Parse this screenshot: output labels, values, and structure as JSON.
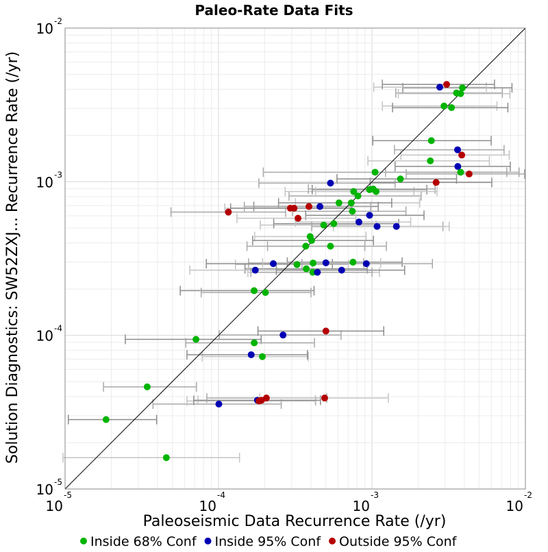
{
  "chart_data": {
    "type": "scatter",
    "title": "Paleo-Rate Data Fits",
    "xlabel": "Paleoseismic Data Recurrence Rate (/yr)",
    "ylabel": "Solution Diagnostics: SW52ZXJ... Recurrence Rate (/yr)",
    "xscale": "log",
    "yscale": "log",
    "xlim": [
      1e-05,
      0.01
    ],
    "ylim": [
      1e-05,
      0.01
    ],
    "grid": true,
    "reference_line": "y = x",
    "x_ticks": [
      {
        "base": "10",
        "exp": "-5"
      },
      {
        "base": "10",
        "exp": "-4"
      },
      {
        "base": "10",
        "exp": "-3"
      },
      {
        "base": "10",
        "exp": "-2"
      }
    ],
    "y_ticks": [
      {
        "base": "10",
        "exp": "-5"
      },
      {
        "base": "10",
        "exp": "-4"
      },
      {
        "base": "10",
        "exp": "-3"
      },
      {
        "base": "10",
        "exp": "-2"
      }
    ],
    "legend_position": "bottom",
    "series": [
      {
        "name": "Inside 68% Conf",
        "color": "#00b400",
        "points": [
          {
            "x": 1.85e-05,
            "y": 2.83e-05,
            "xmin": 1.05e-05,
            "xmax": 3.95e-05
          },
          {
            "x": 3.43e-05,
            "y": 4.62e-05,
            "xmin": 1.78e-05,
            "xmax": 7.18e-05
          },
          {
            "x": 4.57e-05,
            "y": 1.6e-05,
            "xmin": 9.7e-06,
            "xmax": 0.0001371
          },
          {
            "x": 7.13e-05,
            "y": 9.42e-05,
            "xmin": 2.47e-05,
            "xmax": 0.0001896
          },
          {
            "x": 0.0001709,
            "y": 8.94e-05,
            "xmin": 6.12e-05,
            "xmax": 0.0004218
          },
          {
            "x": 0.0001931,
            "y": 7.27e-05,
            "xmin": 7.83e-05,
            "xmax": 0.000385
          },
          {
            "x": 0.0001706,
            "y": 0.0001954,
            "xmin": 5.63e-05,
            "xmax": 0.0004195
          },
          {
            "x": 0.0002021,
            "y": 0.00019,
            "xmin": 7.71e-05,
            "xmax": 0.0004006
          },
          {
            "x": 0.0003245,
            "y": 0.0002889,
            "xmin": 0.0001289,
            "xmax": 0.0007015
          },
          {
            "x": 0.0003733,
            "y": 0.0002712,
            "xmin": 0.0001487,
            "xmax": 0.0009312
          },
          {
            "x": 0.0004133,
            "y": 0.0002956,
            "xmin": 0.000157,
            "xmax": 0.0008825
          },
          {
            "x": 0.0004115,
            "y": 0.0002573,
            "xmin": 0.0001553,
            "xmax": 0.00112
          },
          {
            "x": 0.0007525,
            "y": 0.0002995,
            "xmin": 0.0002806,
            "xmax": 0.001573
          },
          {
            "x": 0.0003702,
            "y": 0.0003803,
            "xmin": 0.0001533,
            "xmax": 0.000899
          },
          {
            "x": 0.0003954,
            "y": 0.0004396,
            "xmin": 0.000172,
            "xmax": 0.0009154
          },
          {
            "x": 0.0004047,
            "y": 0.0004145,
            "xmin": 0.0001669,
            "xmax": 0.001023
          },
          {
            "x": 0.0005366,
            "y": 0.0003803,
            "xmin": 0.0002087,
            "xmax": 0.001242
          },
          {
            "x": 0.0004846,
            "y": 0.0005222,
            "xmin": 0.0001871,
            "xmax": 0.001064
          },
          {
            "x": 0.0005639,
            "y": 0.0005334,
            "xmin": 0.000229,
            "xmax": 0.001494
          },
          {
            "x": 0.0007452,
            "y": 0.0006424,
            "xmin": 0.0003042,
            "xmax": 0.001665
          },
          {
            "x": 0.0007333,
            "y": 0.0007281,
            "xmin": 0.0003173,
            "xmax": 0.002047
          },
          {
            "x": 0.0006095,
            "y": 0.0007281,
            "xmin": 0.0002462,
            "xmax": 0.001345
          },
          {
            "x": 0.0008106,
            "y": 0.000808,
            "xmin": 0.0002882,
            "xmax": 0.002091
          },
          {
            "x": 0.0007598,
            "y": 0.0008632,
            "xmin": 0.0002717,
            "xmax": 0.001876
          },
          {
            "x": 0.0009648,
            "y": 0.0008882,
            "xmin": 0.0004078,
            "xmax": 0.002278
          },
          {
            "x": 0.001017,
            "y": 0.0008967,
            "xmin": 0.0003851,
            "xmax": 0.00258
          },
          {
            "x": 0.001064,
            "y": 0.0008632,
            "xmin": 0.0004294,
            "xmax": 0.002658
          },
          {
            "x": 0.001533,
            "y": 0.001043,
            "xmin": 0.0005914,
            "xmax": 0.003558
          },
          {
            "x": 0.001048,
            "y": 0.001153,
            "xmin": 0.0001958,
            "xmax": 0.007567
          },
          {
            "x": 0.002401,
            "y": 0.001367,
            "xmin": 0.0009412,
            "xmax": 0.005821
          },
          {
            "x": 0.002438,
            "y": 0.00185,
            "xmin": 0.001013,
            "xmax": 0.00598
          },
          {
            "x": 0.003782,
            "y": 0.001153,
            "xmin": 0.001226,
            "xmax": 0.009099
          },
          {
            "x": 0.002949,
            "y": 0.00311,
            "xmin": 0.001169,
            "xmax": 0.006526
          },
          {
            "x": 0.003298,
            "y": 0.003038,
            "xmin": 0.001362,
            "xmax": 0.007686
          },
          {
            "x": 0.003556,
            "y": 0.003782,
            "xmin": 0.00143,
            "xmax": 0.007078
          },
          {
            "x": 0.003782,
            "y": 0.003743,
            "xmin": 0.001486,
            "xmax": 0.007919
          },
          {
            "x": 0.003886,
            "y": 0.004084,
            "xmin": 0.001588,
            "xmax": 0.008178
          }
        ]
      },
      {
        "name": "Inside 95% Conf",
        "color": "#0000b4",
        "points": [
          {
            "x": 0.0001005,
            "y": 3.57e-05,
            "xmin": 3.74e-05,
            "xmax": 0.0002563
          },
          {
            "x": 0.0001793,
            "y": 3.78e-05,
            "xmin": 7.34e-05,
            "xmax": 0.0004271
          },
          {
            "x": 0.0001633,
            "y": 7.48e-05,
            "xmin": 6.23e-05,
            "xmax": 0.0003795
          },
          {
            "x": 0.0002634,
            "y": 0.0001005,
            "xmin": 0.0001012,
            "xmax": 0.0006286
          },
          {
            "x": 0.0001736,
            "y": 0.0002657,
            "xmin": 6.5e-05,
            "xmax": 0.0004089
          },
          {
            "x": 0.0002275,
            "y": 0.0002928,
            "xmin": 8.33e-05,
            "xmax": 0.0005524
          },
          {
            "x": 0.0004409,
            "y": 0.0002573,
            "xmin": 0.0001625,
            "xmax": 0.001001
          },
          {
            "x": 0.0005009,
            "y": 0.0002966,
            "xmin": 0.0001938,
            "xmax": 0.00114
          },
          {
            "x": 0.0006347,
            "y": 0.0002657,
            "xmin": 0.0002382,
            "xmax": 0.001633
          },
          {
            "x": 0.000919,
            "y": 0.0002928,
            "xmin": 0.0003501,
            "xmax": 0.002478
          },
          {
            "x": 0.0008223,
            "y": 0.0005466,
            "xmin": 0.0003162,
            "xmax": 0.001788
          },
          {
            "x": 0.0009648,
            "y": 0.0006047,
            "xmin": 0.00037,
            "xmax": 0.002184
          },
          {
            "x": 0.00108,
            "y": 0.0005117,
            "xmin": 0.0004053,
            "xmax": 0.002903
          },
          {
            "x": 0.001443,
            "y": 0.0005117,
            "xmin": 0.0005603,
            "xmax": 0.003185
          },
          {
            "x": 0.000458,
            "y": 0.0006896,
            "xmin": 0.0001698,
            "xmax": 0.001099
          },
          {
            "x": 0.0005366,
            "y": 0.0009794,
            "xmin": 0.0001832,
            "xmax": 0.001415
          },
          {
            "x": 0.002767,
            "y": 0.004125,
            "xmin": 0.001027,
            "xmax": 0.005566
          },
          {
            "x": 0.003627,
            "y": 0.001257,
            "xmin": 0.001415,
            "xmax": 0.007972
          },
          {
            "x": 0.003614,
            "y": 0.001614,
            "xmin": 0.001402,
            "xmax": 0.007259
          }
        ]
      },
      {
        "name": "Outside 95% Conf",
        "color": "#b40000",
        "points": [
          {
            "x": 0.0001836,
            "y": 3.74e-05,
            "xmin": 6.23e-05,
            "xmax": 0.000431
          },
          {
            "x": 0.0001906,
            "y": 3.78e-05,
            "xmin": 6.9e-05,
            "xmax": 0.0004616
          },
          {
            "x": 0.0002051,
            "y": 3.91e-05,
            "xmin": 8.39e-05,
            "xmax": 0.0005071
          },
          {
            "x": 0.0004916,
            "y": 3.91e-05,
            "xmin": 0.0001858,
            "xmax": 0.001279
          },
          {
            "x": 0.0005009,
            "y": 0.0001067,
            "xmin": 0.0001807,
            "xmax": 0.001194
          },
          {
            "x": 0.0001159,
            "y": 0.0006343,
            "xmin": 4.9e-05,
            "xmax": 0.0002738
          },
          {
            "x": 0.000294,
            "y": 0.0006721,
            "xmin": 0.0001098,
            "xmax": 0.0007281
          },
          {
            "x": 0.0003108,
            "y": 0.0006721,
            "xmin": 0.0001199,
            "xmax": 0.0007388
          },
          {
            "x": 0.0003884,
            "y": 0.0006896,
            "xmin": 0.0001473,
            "xmax": 0.000982
          },
          {
            "x": 0.0003297,
            "y": 0.0005785,
            "xmin": 0.0001318,
            "xmax": 0.0007854
          },
          {
            "x": 0.00262,
            "y": 0.0009888,
            "xmin": 0.000974,
            "xmax": 0.006041
          },
          {
            "x": 0.004299,
            "y": 0.001123,
            "xmin": 0.001673,
            "xmax": 0.009874
          },
          {
            "x": 0.003848,
            "y": 0.001491,
            "xmin": 0.001543,
            "xmax": 0.007844
          },
          {
            "x": 0.003067,
            "y": 0.004299,
            "xmin": 0.001169,
            "xmax": 0.006289
          }
        ]
      }
    ]
  }
}
